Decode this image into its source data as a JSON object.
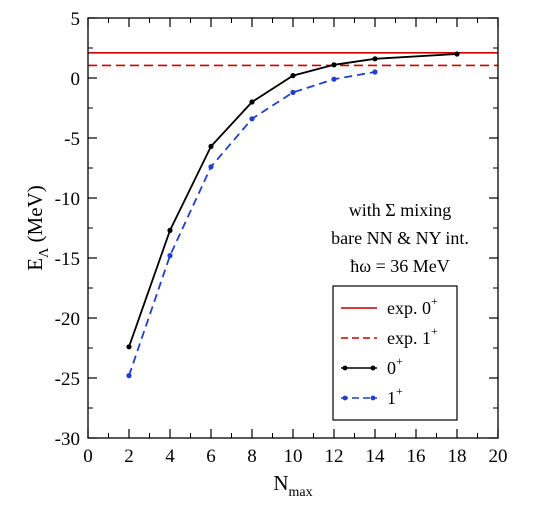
{
  "chart_data": {
    "type": "line",
    "xlabel": {
      "main": "N",
      "sub": "max"
    },
    "ylabel": {
      "main": "E",
      "sub": "Λ",
      "unit": "(MeV)"
    },
    "xlim": [
      0,
      20
    ],
    "ylim": [
      -30,
      5
    ],
    "xticks": [
      0,
      2,
      4,
      6,
      8,
      10,
      12,
      14,
      16,
      18,
      20
    ],
    "yticks": [
      5,
      0,
      -5,
      -10,
      -15,
      -20,
      -25,
      -30
    ],
    "grid": false,
    "annotations": [
      "with Σ mixing",
      "bare NN & NY int.",
      "ħω = 36 MeV"
    ],
    "reference_lines": [
      {
        "name": "exp. 0+",
        "label_main": "exp. 0",
        "label_sup": "+",
        "y": 2.1,
        "color": "#cc0000",
        "style": "solid"
      },
      {
        "name": "exp. 1+",
        "label_main": "exp. 1",
        "label_sup": "+",
        "y": 1.05,
        "color": "#cc0000",
        "style": "dashed"
      }
    ],
    "series": [
      {
        "name": "0+",
        "label_main": "0",
        "label_sup": "+",
        "color": "#000000",
        "style": "solid",
        "x": [
          2,
          4,
          6,
          8,
          10,
          12,
          14,
          18
        ],
        "y": [
          -22.4,
          -12.7,
          -5.7,
          -2.0,
          0.2,
          1.1,
          1.6,
          2.0
        ]
      },
      {
        "name": "1+",
        "label_main": "1",
        "label_sup": "+",
        "color": "#1f3fcc",
        "style": "dashed",
        "x": [
          2,
          4,
          6,
          8,
          10,
          12,
          14
        ],
        "y": [
          -24.8,
          -14.8,
          -7.4,
          -3.4,
          -1.2,
          -0.1,
          0.5
        ]
      }
    ],
    "legend": {
      "placement": "bottom-right",
      "order": [
        "exp. 0+",
        "exp. 1+",
        "0+",
        "1+"
      ]
    }
  }
}
